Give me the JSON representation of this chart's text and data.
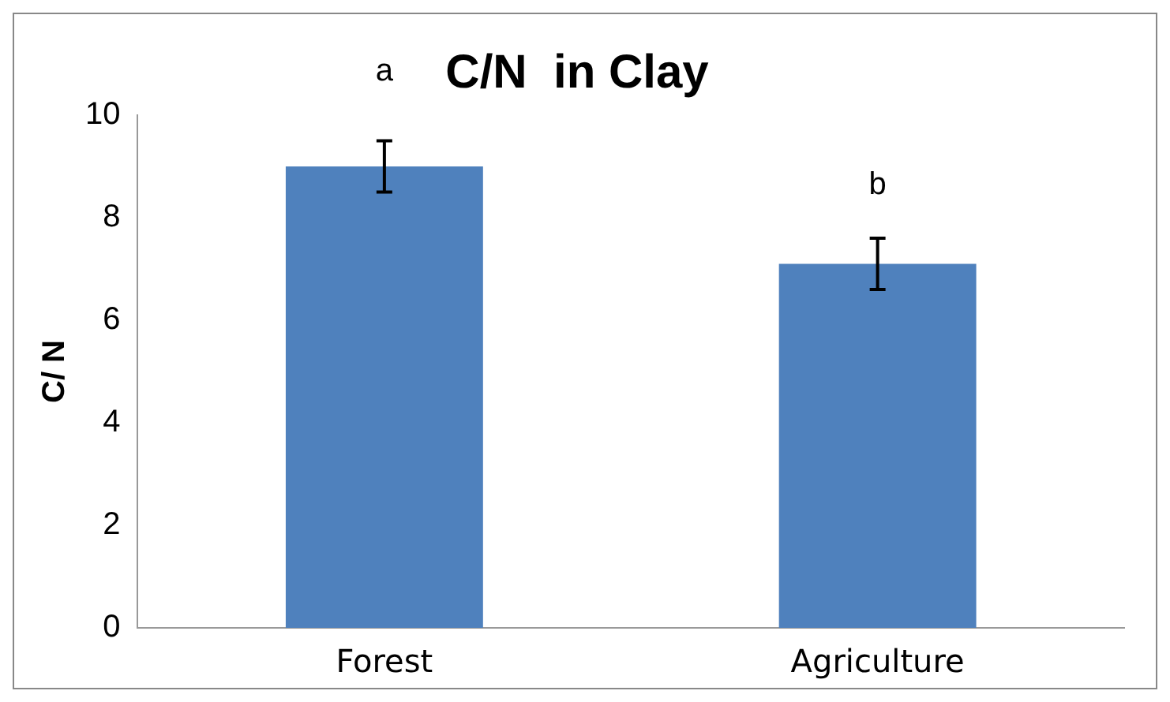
{
  "chart_data": {
    "type": "bar",
    "title": "C/N  in Clay",
    "ylabel": "C/ N",
    "categories": [
      "Forest",
      "Agriculture"
    ],
    "values": [
      9.0,
      7.1
    ],
    "errors": [
      0.5,
      0.5
    ],
    "color": "#4f81bd",
    "ylim": [
      0,
      10
    ],
    "yticks": [
      0,
      2,
      4,
      6,
      8,
      10
    ],
    "grid": false,
    "annotations": [
      "a",
      "b"
    ]
  }
}
